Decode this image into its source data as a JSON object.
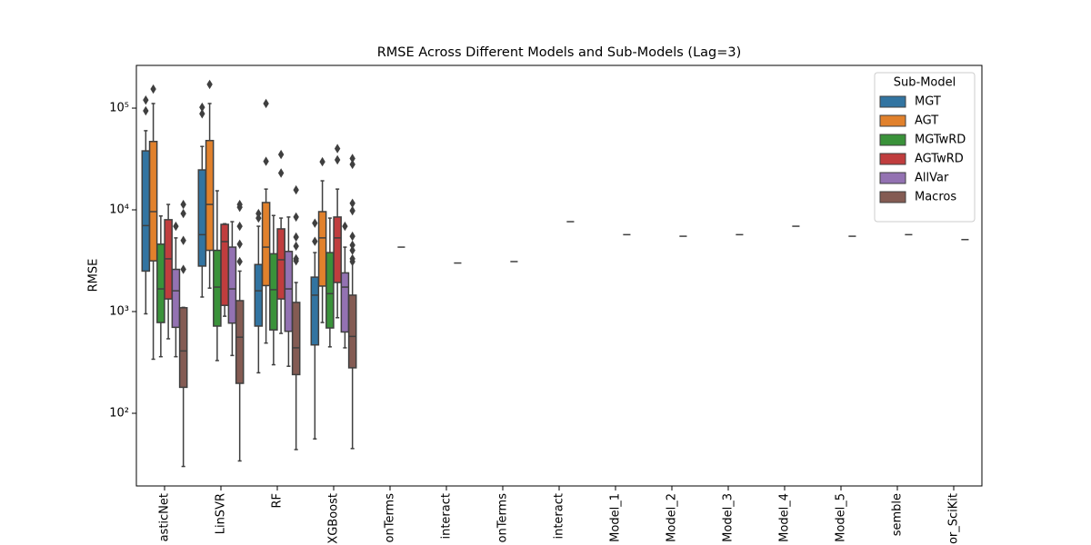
{
  "chart_data": {
    "type": "box",
    "title": "RMSE Across Different Models and Sub-Models (Lag=3)",
    "ylabel": "RMSE",
    "categories": [
      "asticNet",
      "LinSVR",
      "RF",
      "XGBoost",
      "onTerms",
      "interact",
      "onTerms",
      "interact",
      "Model_1",
      "Model_2",
      "Model_3",
      "Model_4",
      "Model_5",
      "semble",
      "or_SciKit"
    ],
    "yscale": "log",
    "ylim": [
      19.3,
      263000
    ],
    "yticks": [
      {
        "value": 100,
        "label": "10²"
      },
      {
        "value": 1000,
        "label": "10³"
      },
      {
        "value": 10000,
        "label": "10⁴"
      },
      {
        "value": 100000,
        "label": "10⁵"
      }
    ],
    "legend_title": "Sub-Model",
    "legend": "upper right",
    "series": [
      {
        "name": "MGT",
        "color": "#3274a1",
        "values": [
          {
            "whislo": 950,
            "q1": 2500,
            "med": 7000,
            "q3": 38000,
            "whishi": 60000,
            "fliers": [
              120000,
              94000
            ]
          },
          {
            "whislo": 1390,
            "q1": 2800,
            "med": 5700,
            "q3": 24700,
            "whishi": 42000,
            "fliers": [
              102000,
              88000
            ]
          },
          {
            "whislo": 250,
            "q1": 720,
            "med": 1600,
            "q3": 2900,
            "whishi": 6900,
            "fliers": [
              9200,
              8300
            ]
          },
          {
            "whislo": 56,
            "q1": 470,
            "med": 1450,
            "q3": 2180,
            "whishi": 3800,
            "fliers": [
              7400,
              4900
            ]
          },
          null,
          null,
          null,
          null,
          null,
          null,
          null,
          null,
          null,
          null,
          null
        ]
      },
      {
        "name": "AGT",
        "color": "#e1812c",
        "values": [
          {
            "whislo": 340,
            "q1": 3150,
            "med": 9600,
            "q3": 47000,
            "whishi": 111000,
            "fliers": [
              154000
            ]
          },
          {
            "whislo": 1700,
            "q1": 4000,
            "med": 11300,
            "q3": 48000,
            "whishi": 111000,
            "fliers": [
              171000
            ]
          },
          {
            "whislo": 490,
            "q1": 1800,
            "med": 4300,
            "q3": 11800,
            "whishi": 16000,
            "fliers": [
              30000,
              111000
            ]
          },
          {
            "whislo": 780,
            "q1": 1780,
            "med": 5300,
            "q3": 9600,
            "whishi": 19300,
            "fliers": [
              29700
            ]
          },
          null,
          null,
          null,
          null,
          null,
          null,
          null,
          null,
          null,
          null,
          null
        ]
      },
      {
        "name": "MGTwRD",
        "color": "#3a923a",
        "values": [
          {
            "whislo": 360,
            "q1": 780,
            "med": 1670,
            "q3": 4600,
            "whishi": 8700,
            "fliers": []
          },
          {
            "whislo": 330,
            "q1": 720,
            "med": 1740,
            "q3": 4000,
            "whishi": 15400,
            "fliers": []
          },
          {
            "whislo": 300,
            "q1": 660,
            "med": 1640,
            "q3": 3700,
            "whishi": 8800,
            "fliers": []
          },
          {
            "whislo": 450,
            "q1": 690,
            "med": 1500,
            "q3": 3800,
            "whishi": 8300,
            "fliers": []
          },
          null,
          null,
          null,
          null,
          null,
          null,
          null,
          null,
          null,
          null,
          null
        ]
      },
      {
        "name": "AGTwRD",
        "color": "#c03d3e",
        "values": [
          {
            "whislo": 540,
            "q1": 1330,
            "med": 3300,
            "q3": 8000,
            "whishi": 11300,
            "fliers": []
          },
          {
            "whislo": 900,
            "q1": 1150,
            "med": 4870,
            "q3": 7200,
            "whishi": 7300,
            "fliers": []
          },
          {
            "whislo": 610,
            "q1": 1330,
            "med": 3230,
            "q3": 6500,
            "whishi": 8300,
            "fliers": [
              35000,
              23000
            ]
          },
          {
            "whislo": 870,
            "q1": 1930,
            "med": 5300,
            "q3": 8500,
            "whishi": 16000,
            "fliers": [
              40000,
              31000
            ]
          },
          null,
          null,
          null,
          null,
          null,
          null,
          null,
          null,
          null,
          null,
          null
        ]
      },
      {
        "name": "AllVar",
        "color": "#9372b2",
        "values": [
          {
            "whislo": 360,
            "q1": 700,
            "med": 1600,
            "q3": 2600,
            "whishi": 5300,
            "fliers": [
              6900
            ]
          },
          {
            "whislo": 370,
            "q1": 770,
            "med": 1670,
            "q3": 4300,
            "whishi": 7650,
            "fliers": []
          },
          {
            "whislo": 290,
            "q1": 640,
            "med": 1670,
            "q3": 3900,
            "whishi": 8500,
            "fliers": []
          },
          {
            "whislo": 440,
            "q1": 630,
            "med": 1740,
            "q3": 2400,
            "whishi": 4300,
            "fliers": [
              6900
            ]
          },
          {
            "med": 4300
          },
          {
            "med": 3000
          },
          {
            "med": 3100
          },
          {
            "med": 7650
          },
          {
            "med": 5700
          },
          {
            "med": 5500
          },
          {
            "med": 5700
          },
          {
            "med": 6900
          },
          {
            "med": 5500
          },
          {
            "med": 5700
          },
          {
            "med": 5100
          }
        ]
      },
      {
        "name": "Macros",
        "color": "#845b53",
        "values": [
          {
            "whislo": 30,
            "q1": 180,
            "med": 410,
            "q3": 1090,
            "whishi": 1100,
            "fliers": [
              11300,
              9200,
              5000,
              2600
            ]
          },
          {
            "whislo": 34,
            "q1": 197,
            "med": 560,
            "q3": 1280,
            "whishi": 2500,
            "fliers": [
              11300,
              10600,
              6900,
              4600,
              3100
            ]
          },
          {
            "whislo": 44,
            "q1": 240,
            "med": 440,
            "q3": 1230,
            "whishi": 1930,
            "fliers": [
              15700,
              8500,
              5400,
              4400,
              3300,
              3150
            ]
          },
          {
            "whislo": 45,
            "q1": 280,
            "med": 570,
            "q3": 1450,
            "whishi": 3000,
            "fliers": [
              32000,
              28000,
              11600,
              9800,
              5500,
              4500,
              4000,
              3300,
              3100
            ]
          },
          null,
          null,
          null,
          null,
          null,
          null,
          null,
          null,
          null,
          null,
          null
        ]
      }
    ]
  }
}
